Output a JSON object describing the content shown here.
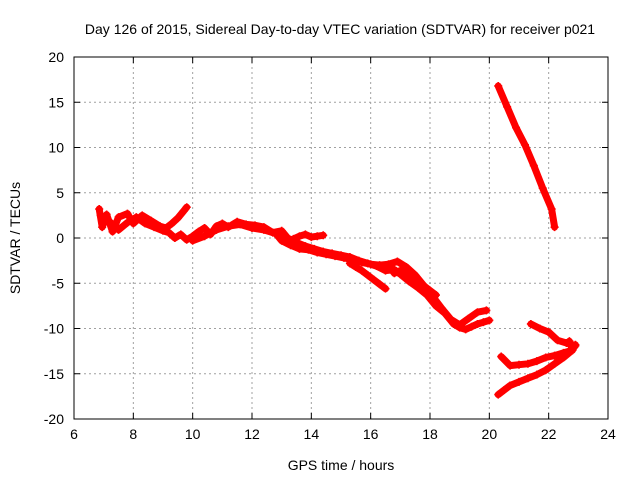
{
  "chart_data": {
    "type": "scatter",
    "title": "Day 126 of 2015, Sidereal Day-to-day VTEC variation (SDTVAR) for receiver p021",
    "xlabel": "GPS time / hours",
    "ylabel": "SDTVAR / TECUs",
    "xlim": [
      6,
      24
    ],
    "ylim": [
      -20,
      20
    ],
    "xticks": [
      6,
      8,
      10,
      12,
      14,
      16,
      18,
      20,
      22,
      24
    ],
    "yticks": [
      -20,
      -15,
      -10,
      -5,
      0,
      5,
      10,
      15,
      20
    ],
    "grid": true,
    "marker": "+",
    "color": "#ff0000",
    "series": [
      {
        "name": "trace-main-1",
        "x": [
          6.85,
          6.95,
          7.1,
          7.3,
          7.5,
          7.8,
          8.0,
          8.3,
          8.6,
          8.9,
          9.1,
          9.3,
          9.5,
          9.7,
          9.8
        ],
        "y": [
          3.2,
          1.2,
          2.6,
          0.7,
          2.3,
          2.7,
          1.6,
          2.5,
          1.9,
          1.3,
          1.1,
          1.6,
          2.2,
          3.0,
          3.4
        ]
      },
      {
        "name": "trace-main-2",
        "x": [
          6.9,
          7.2,
          7.5,
          7.8,
          8.1,
          8.4,
          8.7,
          9.0,
          9.2,
          9.4,
          9.6,
          9.8,
          10.0,
          10.2,
          10.4,
          10.6,
          10.8,
          11.0,
          11.2,
          11.5,
          11.8,
          12.1,
          12.4,
          12.7,
          13.0,
          13.2,
          13.5,
          13.8,
          14.1,
          14.4,
          14.7,
          15.0,
          15.3,
          15.6,
          15.9,
          16.2,
          16.5,
          16.8,
          17.0,
          17.3,
          17.6,
          17.9,
          18.2,
          18.5,
          18.8,
          19.0,
          19.2,
          19.4,
          19.6,
          19.8,
          20.0
        ],
        "y": [
          2.5,
          1.8,
          0.9,
          1.7,
          2.3,
          1.6,
          1.2,
          0.8,
          0.6,
          0.0,
          0.4,
          -0.2,
          0.2,
          0.7,
          1.1,
          0.4,
          1.3,
          1.6,
          1.2,
          1.8,
          1.5,
          1.4,
          1.2,
          0.6,
          0.8,
          0.0,
          -0.5,
          -0.9,
          -1.2,
          -1.5,
          -1.7,
          -1.9,
          -2.1,
          -2.5,
          -2.8,
          -3.1,
          -3.6,
          -3.5,
          -4.0,
          -4.8,
          -5.5,
          -6.3,
          -7.5,
          -8.3,
          -9.5,
          -9.9,
          -10.1,
          -9.8,
          -9.5,
          -9.3,
          -9.1
        ]
      },
      {
        "name": "trace-main-3",
        "x": [
          10.0,
          10.4,
          10.8,
          11.2,
          11.6,
          12.0,
          12.4,
          12.8,
          13.0,
          13.3,
          13.6,
          13.9,
          14.2,
          14.5,
          14.8,
          15.1,
          15.4,
          15.7,
          16.0,
          16.3,
          16.6,
          16.9,
          17.2,
          17.5,
          17.8,
          18.1,
          18.4,
          18.7,
          19.0,
          19.3,
          19.6,
          19.9
        ],
        "y": [
          -0.3,
          0.2,
          0.9,
          1.3,
          1.5,
          1.1,
          0.9,
          0.5,
          -0.3,
          -0.8,
          -1.2,
          -1.3,
          -1.6,
          -1.8,
          -2.0,
          -2.2,
          -2.4,
          -2.7,
          -2.9,
          -3.0,
          -2.9,
          -2.6,
          -3.2,
          -4.1,
          -5.3,
          -6.5,
          -7.8,
          -9.0,
          -9.6,
          -8.9,
          -8.2,
          -8.0
        ]
      },
      {
        "name": "trace-branch-14h",
        "x": [
          13.2,
          13.4,
          13.6,
          13.8,
          14.0,
          14.2,
          14.4
        ],
        "y": [
          -0.4,
          -0.1,
          0.2,
          0.4,
          0.1,
          0.2,
          0.3
        ]
      },
      {
        "name": "trace-branch-15h",
        "x": [
          15.3,
          15.5,
          15.7,
          15.9,
          16.1,
          16.3,
          16.5
        ],
        "y": [
          -2.8,
          -3.2,
          -3.6,
          -4.1,
          -4.6,
          -5.1,
          -5.6
        ]
      },
      {
        "name": "trace-branch-17h",
        "x": [
          16.6,
          16.8,
          17.0,
          17.2,
          17.4,
          17.6,
          17.8,
          18.0,
          18.2
        ],
        "y": [
          -3.0,
          -3.9,
          -3.6,
          -4.0,
          -4.6,
          -4.9,
          -5.3,
          -5.8,
          -6.3
        ]
      },
      {
        "name": "trace-late-rise",
        "x": [
          20.3,
          20.6,
          20.9,
          21.2,
          21.5,
          21.8,
          22.1,
          22.2
        ],
        "y": [
          16.8,
          14.5,
          12.2,
          10.3,
          8.0,
          5.5,
          3.2,
          1.2
        ]
      },
      {
        "name": "trace-late-loop-1",
        "x": [
          20.3,
          20.5,
          20.7,
          21.0,
          21.3,
          21.6,
          21.9,
          22.2,
          22.5,
          22.8,
          22.9
        ],
        "y": [
          -17.3,
          -16.8,
          -16.3,
          -15.9,
          -15.5,
          -15.1,
          -14.6,
          -13.9,
          -13.2,
          -12.4,
          -11.8
        ]
      },
      {
        "name": "trace-late-loop-2",
        "x": [
          20.4,
          20.7,
          21.0,
          21.3,
          21.6,
          21.9,
          22.2,
          22.5,
          22.8,
          22.7
        ],
        "y": [
          -13.1,
          -14.1,
          -14.0,
          -13.9,
          -13.6,
          -13.2,
          -13.0,
          -12.7,
          -12.4,
          -11.4
        ]
      },
      {
        "name": "trace-late-upper",
        "x": [
          21.4,
          21.7,
          22.0,
          22.3,
          22.6,
          22.9
        ],
        "y": [
          -9.5,
          -10.0,
          -10.4,
          -11.3,
          -11.6,
          -11.9
        ]
      }
    ]
  }
}
